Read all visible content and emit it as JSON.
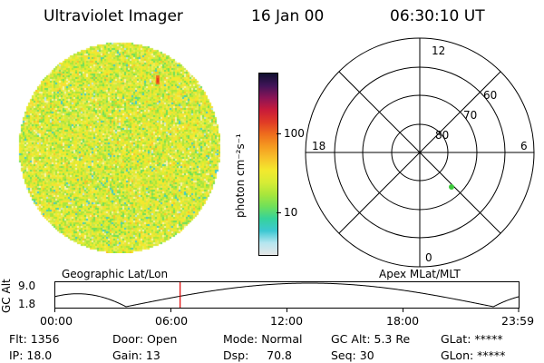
{
  "header": {
    "instrument": "Ultraviolet Imager",
    "date": "16 Jan 00",
    "time": "06:30:10 UT"
  },
  "colorbar": {
    "unit_label": "photon cm⁻²s⁻¹",
    "ticks": [
      "100",
      "10"
    ],
    "stops": [
      "#e6e6e6",
      "#b5e6f0",
      "#3cc8d2",
      "#35d39b",
      "#6fe05a",
      "#a8e63c",
      "#d7ec35",
      "#f3e92d",
      "#f7c22a",
      "#f59a20",
      "#ee6c1d",
      "#e03a26",
      "#c81a3a",
      "#8a1456",
      "#401458",
      "#101030"
    ]
  },
  "polar": {
    "mlt_labels": {
      "top": "12",
      "bottom": "0",
      "left": "18",
      "right": "6"
    },
    "lat_labels": [
      "60",
      "70",
      "80"
    ]
  },
  "track": {
    "left_label": "Geographic Lat/Lon",
    "right_label": "Apex MLat/MLT",
    "y_axis_label": "GC Alt",
    "y_ticks": [
      "9.0",
      "1.8"
    ],
    "x_ticks": [
      "00:00",
      "06:00",
      "12:00",
      "18:00",
      "23:59"
    ],
    "current_time_hours": 6.5
  },
  "status": {
    "flt": "Flt: 1356",
    "ip": "IP: 18.0",
    "door": "Door: Open",
    "gain": "Gain: 13",
    "mode": "Mode: Normal",
    "dsp": "Dsp:     70.8",
    "gc_alt": "GC Alt: 5.3 Re",
    "seq": "Seq: 30",
    "glat": "GLat: *****",
    "glon": "GLon: *****"
  }
}
